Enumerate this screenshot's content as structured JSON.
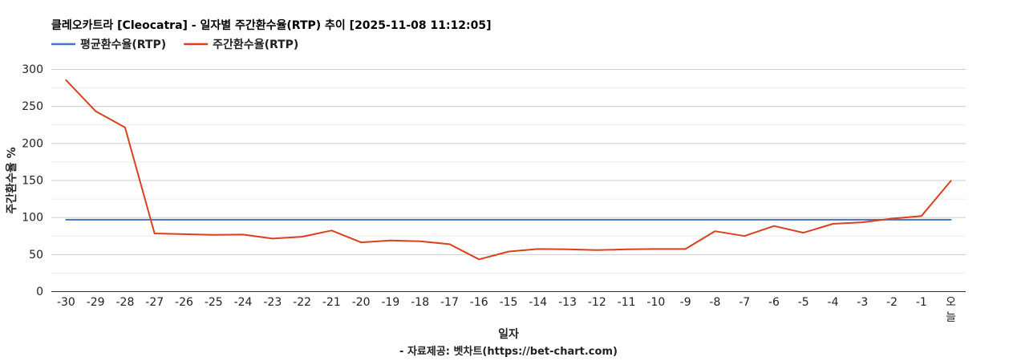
{
  "chart_data": {
    "type": "line",
    "title": "클레오카트라 [Cleocatra] - 일자별 주간환수율(RTP) 추이 [2025-11-08 11:12:05]",
    "xlabel": "일자",
    "ylabel": "주간환수율 %",
    "source": "- 자료제공: 벳차트(https://bet-chart.com)",
    "ylim": [
      0,
      300
    ],
    "yticks": [
      "0",
      "50",
      "100",
      "150",
      "200",
      "250",
      "300"
    ],
    "grid": true,
    "legend_position": "top-left",
    "categories": [
      "-30",
      "-29",
      "-28",
      "-27",
      "-26",
      "-25",
      "-24",
      "-23",
      "-22",
      "-21",
      "-20",
      "-19",
      "-18",
      "-17",
      "-16",
      "-15",
      "-14",
      "-13",
      "-12",
      "-11",
      "-10",
      "-9",
      "-8",
      "-7",
      "-6",
      "-5",
      "-4",
      "-3",
      "-2",
      "-1",
      "오늘"
    ],
    "series": [
      {
        "name": "평균환수율(RTP)",
        "color": "#4472c4",
        "values": [
          96.5,
          96.5,
          96.5,
          96.5,
          96.5,
          96.5,
          96.5,
          96.5,
          96.5,
          96.5,
          96.5,
          96.5,
          96.5,
          96.5,
          96.5,
          96.5,
          96.5,
          96.5,
          96.5,
          96.5,
          96.5,
          96.5,
          96.5,
          96.5,
          96.5,
          96.5,
          96.5,
          96.5,
          96.5,
          96.5,
          96.5
        ]
      },
      {
        "name": "주간환수율(RTP)",
        "color": "#d9411e",
        "values": [
          285,
          243,
          221,
          78,
          77,
          76,
          76.5,
          71,
          73.5,
          82,
          66,
          68.5,
          67.5,
          63.5,
          43,
          53.5,
          57,
          56.5,
          55.5,
          56.5,
          57,
          57,
          81,
          74.5,
          88,
          79,
          91,
          93,
          98,
          101.5,
          149
        ]
      }
    ]
  }
}
